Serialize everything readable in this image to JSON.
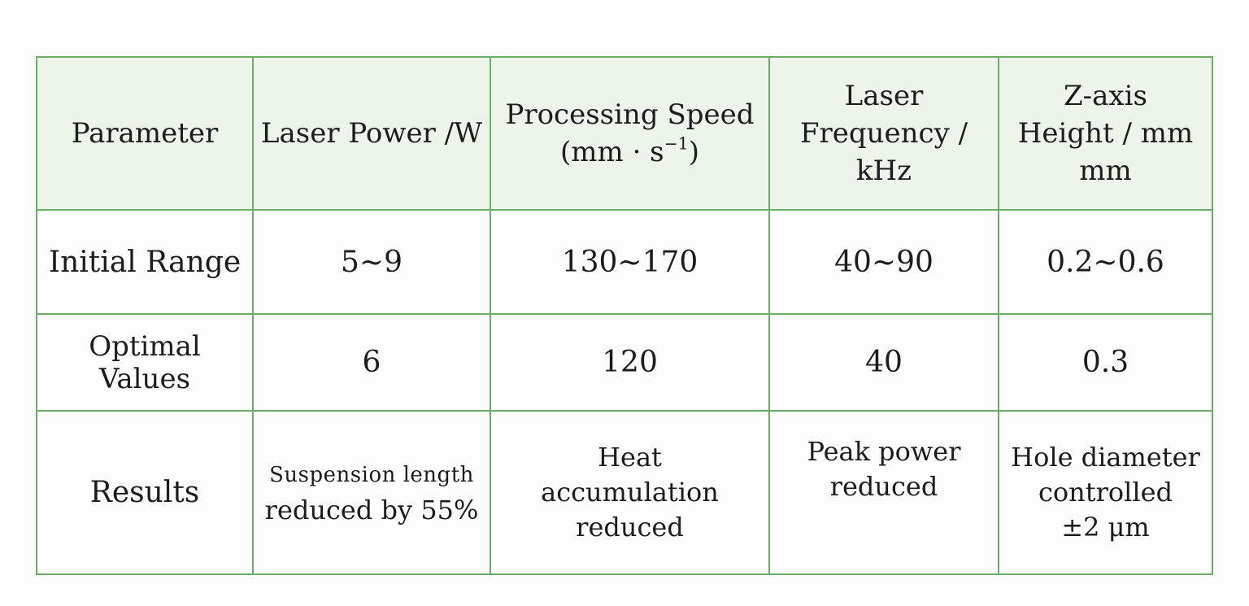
{
  "table": {
    "headers": {
      "parameter": "Parameter",
      "laser_power": "Laser Power /W",
      "processing_speed_line1": "Processing Speed",
      "processing_speed_line2_pre": "(mm · s",
      "processing_speed_line2_sup": "−1",
      "processing_speed_line2_post": ")",
      "laser_frequency_line1": "Laser",
      "laser_frequency_line2": "Frequency /",
      "laser_frequency_line3": "kHz",
      "z_axis_line1": "Z-axis",
      "z_axis_line2": "Height / mm",
      "z_axis_line3": "mm"
    },
    "initial_range": {
      "label": "Initial Range",
      "laser_power": "5~9",
      "processing_speed": "130~170",
      "laser_frequency": "40~90",
      "z_axis": "0.2~0.6"
    },
    "optimal_values": {
      "label": "Optimal Values",
      "laser_power": "6",
      "processing_speed": "120",
      "laser_frequency": "40",
      "z_axis": "0.3"
    },
    "results": {
      "label": "Results",
      "laser_power_line1": "Suspension length",
      "laser_power_line2": "reduced by 55%",
      "processing_speed_line1": "Heat",
      "processing_speed_line2": "accumulation",
      "processing_speed_line3": "reduced",
      "laser_frequency_line1": "Peak power",
      "laser_frequency_line2": "reduced",
      "z_axis_line1": "Hole diameter",
      "z_axis_line2": "controlled",
      "z_axis_line3": "±2 μm"
    }
  },
  "colors": {
    "border": "#6aad66",
    "header_background": "#edf4ea"
  }
}
